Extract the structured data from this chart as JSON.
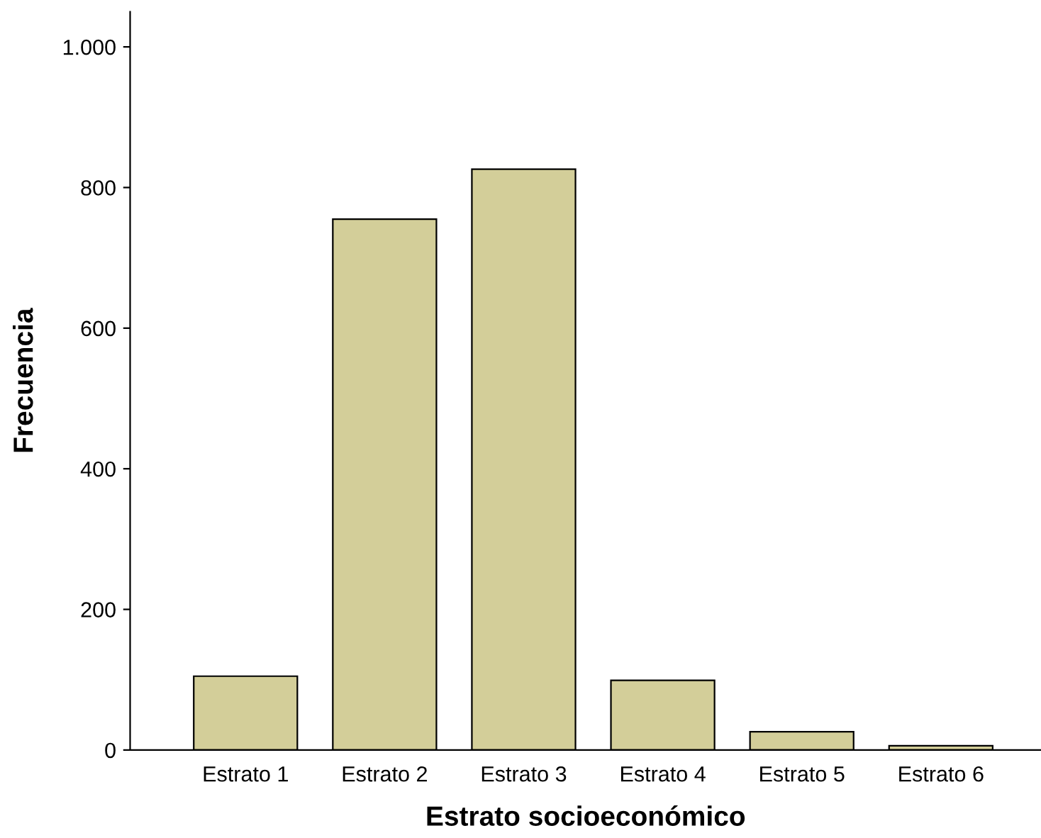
{
  "chart_data": {
    "type": "bar",
    "xlabel": "Estrato socioeconómico",
    "ylabel": "Frecuencia",
    "categories": [
      "Estrato 1",
      "Estrato 2",
      "Estrato 3",
      "Estrato 4",
      "Estrato 5",
      "Estrato 6"
    ],
    "values": [
      105,
      755,
      826,
      99,
      26,
      6
    ],
    "color": "#d3ce99",
    "ylim": [
      0,
      1050
    ],
    "yticks": [
      0,
      200,
      400,
      600,
      800,
      {
        "value": 1000,
        "label": "1.000"
      }
    ],
    "grid": false
  }
}
